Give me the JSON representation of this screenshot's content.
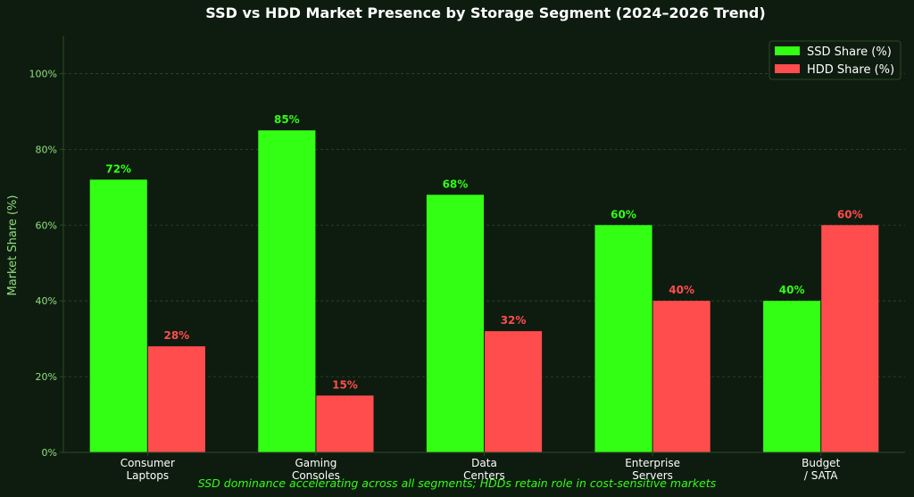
{
  "chart_data": {
    "type": "bar",
    "title": "SSD vs HDD Market Presence by Storage Segment (2024–2026 Trend)",
    "xlabel": "",
    "ylabel": "Market Share (%)",
    "ylim": [
      0,
      110
    ],
    "yticks": [
      0,
      20,
      40,
      60,
      80,
      100
    ],
    "ytick_labels": [
      "0%",
      "20%",
      "40%",
      "60%",
      "80%",
      "100%"
    ],
    "categories": [
      [
        "Consumer",
        "Laptops"
      ],
      [
        "Gaming",
        "Consoles"
      ],
      [
        "Data",
        "Centers"
      ],
      [
        "Enterprise",
        "Servers"
      ],
      [
        "Budget",
        "/ SATA"
      ]
    ],
    "series": [
      {
        "name": "SSD Share (%)",
        "values": [
          72,
          85,
          68,
          60,
          40
        ],
        "labels": [
          "72%",
          "85%",
          "68%",
          "60%",
          "40%"
        ],
        "color": "#33ff14"
      },
      {
        "name": "HDD Share (%)",
        "values": [
          28,
          15,
          32,
          40,
          60
        ],
        "labels": [
          "28%",
          "15%",
          "32%",
          "40%",
          "60%"
        ],
        "color": "#ff4d4d"
      }
    ],
    "grid": true,
    "legend_position": "top-right",
    "annotation": "SSD dominance accelerating across all segments; HDDs retain role in cost-sensitive markets"
  },
  "colors": {
    "background": "#0e1c10",
    "axis_text": "#8fe07a",
    "grid": "#2a4a22",
    "annotation": "#33ff14"
  }
}
